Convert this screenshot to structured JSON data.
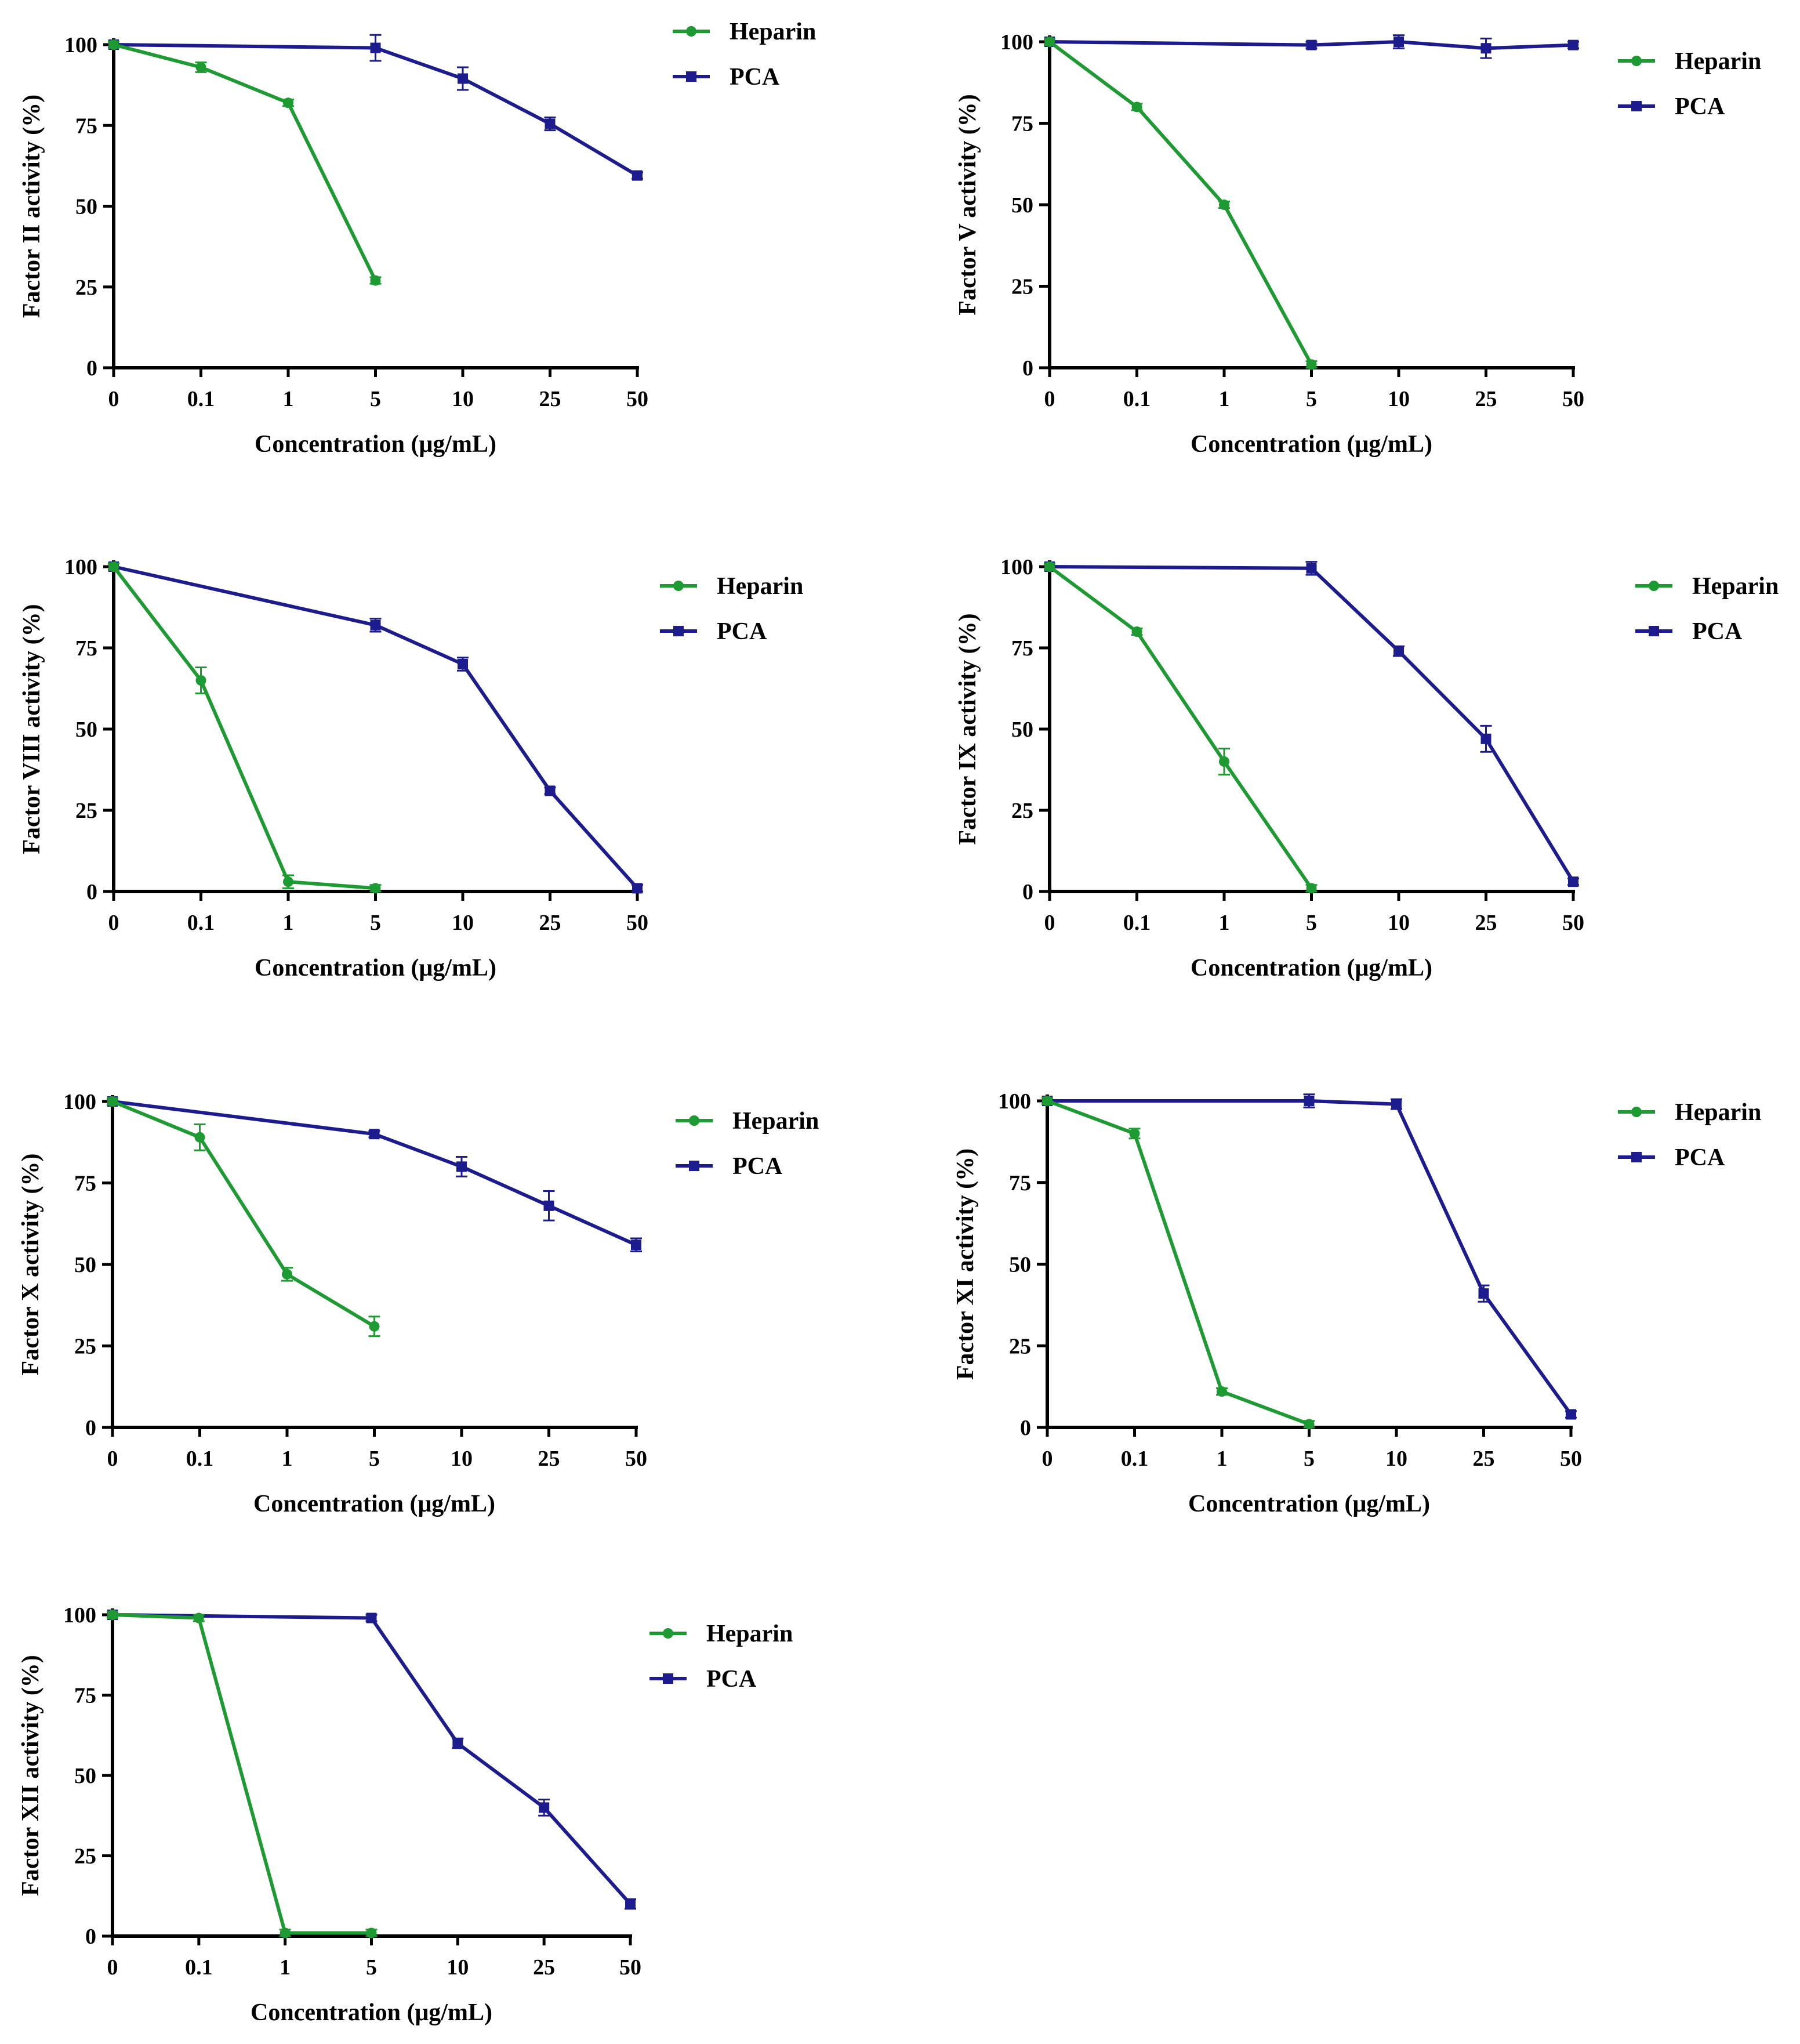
{
  "colors": {
    "heparin": "#1e9a32",
    "pca": "#1c1c8f",
    "axis": "#000000"
  },
  "chart_data": [
    {
      "type": "line",
      "id": "factor-ii",
      "ylabel": "Factor II activity (%)",
      "xlabel": "Concentration (μg/mL)",
      "categories": [
        "0",
        "0.1",
        "1",
        "5",
        "10",
        "25",
        "50"
      ],
      "yticks": [
        "0",
        "25",
        "50",
        "75",
        "100"
      ],
      "ylim": [
        0,
        100
      ],
      "legend": "top-right",
      "series": [
        {
          "name": "Heparin",
          "marker": "circle",
          "values": [
            100,
            93,
            82,
            27,
            null,
            null,
            null
          ],
          "errors": [
            1,
            1.5,
            1,
            1,
            0,
            0,
            0
          ]
        },
        {
          "name": "PCA",
          "marker": "square",
          "values": [
            100,
            null,
            null,
            99,
            89.5,
            75.5,
            59.5
          ],
          "errors": [
            1,
            0,
            0,
            4,
            3.5,
            2,
            1
          ]
        }
      ]
    },
    {
      "type": "line",
      "id": "factor-v",
      "ylabel": "Factor V activity (%)",
      "xlabel": "Concentration (μg/mL)",
      "categories": [
        "0",
        "0.1",
        "1",
        "5",
        "10",
        "25",
        "50"
      ],
      "yticks": [
        "0",
        "25",
        "50",
        "75",
        "100"
      ],
      "ylim": [
        0,
        100
      ],
      "legend": "top-right",
      "series": [
        {
          "name": "Heparin",
          "marker": "circle",
          "values": [
            100,
            80,
            50,
            1,
            null,
            null,
            null
          ],
          "errors": [
            1,
            1,
            1,
            1,
            0,
            0,
            0
          ]
        },
        {
          "name": "PCA",
          "marker": "square",
          "values": [
            100,
            null,
            null,
            99,
            100,
            98,
            99
          ],
          "errors": [
            1,
            0,
            0,
            1,
            2,
            3,
            1
          ]
        }
      ]
    },
    {
      "type": "line",
      "id": "factor-viii",
      "ylabel": "Factor VIII activity (%)",
      "xlabel": "Concentration (μg/mL)",
      "categories": [
        "0",
        "0.1",
        "1",
        "5",
        "10",
        "25",
        "50"
      ],
      "yticks": [
        "0",
        "25",
        "50",
        "75",
        "100"
      ],
      "ylim": [
        0,
        100
      ],
      "legend": "top-right",
      "series": [
        {
          "name": "Heparin",
          "marker": "circle",
          "values": [
            100,
            65,
            3,
            1,
            null,
            null,
            null
          ],
          "errors": [
            1,
            4,
            2,
            1,
            0,
            0,
            0
          ]
        },
        {
          "name": "PCA",
          "marker": "square",
          "values": [
            100,
            null,
            null,
            82,
            70,
            31,
            1
          ],
          "errors": [
            1,
            0,
            0,
            2,
            2,
            1,
            1
          ]
        }
      ]
    },
    {
      "type": "line",
      "id": "factor-ix",
      "ylabel": "Factor IX activity (%)",
      "xlabel": "Concentration (μg/mL)",
      "categories": [
        "0",
        "0.1",
        "1",
        "5",
        "10",
        "25",
        "50"
      ],
      "yticks": [
        "0",
        "25",
        "50",
        "75",
        "100"
      ],
      "ylim": [
        0,
        100
      ],
      "legend": "top-right",
      "series": [
        {
          "name": "Heparin",
          "marker": "circle",
          "values": [
            100,
            80,
            40,
            1,
            null,
            null,
            null
          ],
          "errors": [
            1,
            1,
            4,
            1,
            0,
            0,
            0
          ]
        },
        {
          "name": "PCA",
          "marker": "square",
          "values": [
            100,
            null,
            null,
            99.5,
            74,
            47,
            3
          ],
          "errors": [
            1,
            0,
            0,
            2,
            1.5,
            4,
            1
          ]
        }
      ]
    },
    {
      "type": "line",
      "id": "factor-x",
      "ylabel": "Factor X activity (%)",
      "xlabel": "Concentration (μg/mL)",
      "categories": [
        "0",
        "0.1",
        "1",
        "5",
        "10",
        "25",
        "50"
      ],
      "yticks": [
        "0",
        "25",
        "50",
        "75",
        "100"
      ],
      "ylim": [
        0,
        100
      ],
      "legend": "top-right",
      "series": [
        {
          "name": "Heparin",
          "marker": "circle",
          "values": [
            100,
            89,
            47,
            31,
            null,
            null,
            null
          ],
          "errors": [
            1,
            4,
            2,
            3,
            0,
            0,
            0
          ]
        },
        {
          "name": "PCA",
          "marker": "square",
          "values": [
            100,
            null,
            null,
            90,
            80,
            68,
            56
          ],
          "errors": [
            1,
            0,
            0,
            1,
            3,
            4.5,
            2
          ]
        }
      ]
    },
    {
      "type": "line",
      "id": "factor-xi",
      "ylabel": "Factor XI activity (%)",
      "xlabel": "Concentration (μg/mL)",
      "categories": [
        "0",
        "0.1",
        "1",
        "5",
        "10",
        "25",
        "50"
      ],
      "yticks": [
        "0",
        "25",
        "50",
        "75",
        "100"
      ],
      "ylim": [
        0,
        100
      ],
      "legend": "top-right",
      "series": [
        {
          "name": "Heparin",
          "marker": "circle",
          "values": [
            100,
            90,
            11,
            1,
            null,
            null,
            null
          ],
          "errors": [
            1,
            1.5,
            1,
            1,
            0,
            0,
            0
          ]
        },
        {
          "name": "PCA",
          "marker": "square",
          "values": [
            100,
            null,
            null,
            100,
            99,
            41,
            4
          ],
          "errors": [
            1,
            0,
            0,
            2,
            1.5,
            2.5,
            1
          ]
        }
      ]
    },
    {
      "type": "line",
      "id": "factor-xii",
      "ylabel": "Factor XII activity (%)",
      "xlabel": "Concentration (μg/mL)",
      "categories": [
        "0",
        "0.1",
        "1",
        "5",
        "10",
        "25",
        "50"
      ],
      "yticks": [
        "0",
        "25",
        "50",
        "75",
        "100"
      ],
      "ylim": [
        0,
        100
      ],
      "legend": "top-right",
      "series": [
        {
          "name": "Heparin",
          "marker": "circle",
          "values": [
            100,
            99,
            1,
            1,
            null,
            null,
            null
          ],
          "errors": [
            1,
            1,
            1,
            1,
            0,
            0,
            0
          ]
        },
        {
          "name": "PCA",
          "marker": "square",
          "values": [
            100,
            null,
            null,
            99,
            60,
            40,
            10
          ],
          "errors": [
            1,
            0,
            0,
            1,
            1.5,
            2.5,
            1.5
          ]
        }
      ]
    }
  ]
}
